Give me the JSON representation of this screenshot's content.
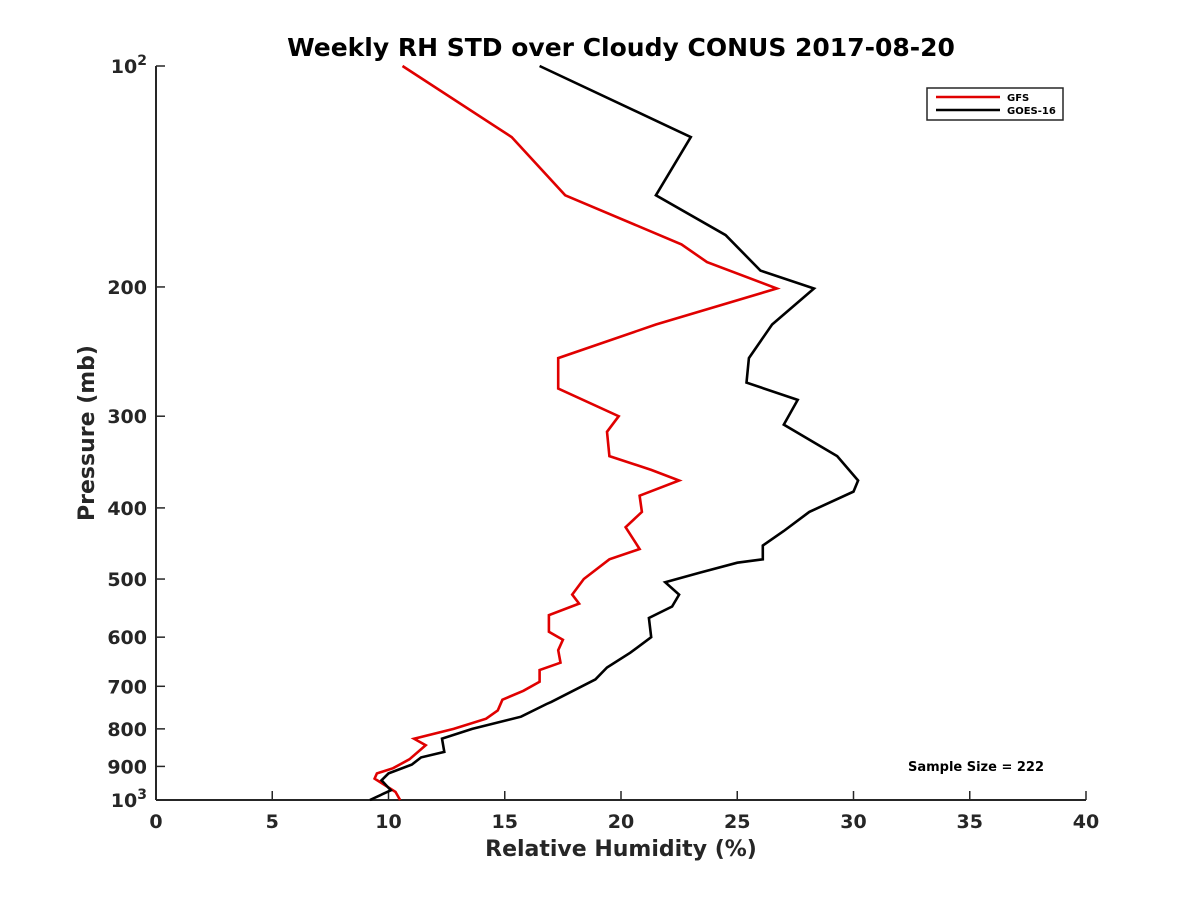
{
  "chart_data": {
    "type": "line",
    "title": "Weekly RH STD over Cloudy CONUS 2017-08-20",
    "xlabel": "Relative Humidity (%)",
    "ylabel": "Pressure (mb)",
    "xlim": [
      0,
      40
    ],
    "ylim": [
      100,
      1000
    ],
    "y_scale": "log",
    "y_reversed": true,
    "x_ticks": [
      "0",
      "5",
      "10",
      "15",
      "20",
      "25",
      "30",
      "35",
      "40"
    ],
    "y_ticks": [
      {
        "value": 100,
        "label": "10",
        "sup": "2"
      },
      {
        "value": 200,
        "label": "200",
        "sup": ""
      },
      {
        "value": 300,
        "label": "300",
        "sup": ""
      },
      {
        "value": 400,
        "label": "400",
        "sup": ""
      },
      {
        "value": 500,
        "label": "500",
        "sup": ""
      },
      {
        "value": 600,
        "label": "600",
        "sup": ""
      },
      {
        "value": 700,
        "label": "700",
        "sup": ""
      },
      {
        "value": 800,
        "label": "800",
        "sup": ""
      },
      {
        "value": 900,
        "label": "900",
        "sup": ""
      },
      {
        "value": 1000,
        "label": "10",
        "sup": "3"
      }
    ],
    "grid": false,
    "legend_position": "top-right",
    "annotation": "Sample Size = 222",
    "series": [
      {
        "name": "GFS",
        "color": "#e00000",
        "points": [
          [
            10.6,
            100
          ],
          [
            15.3,
            125
          ],
          [
            17.6,
            150
          ],
          [
            22.6,
            175
          ],
          [
            23.7,
            185
          ],
          [
            26.7,
            201
          ],
          [
            21.5,
            225
          ],
          [
            17.3,
            250
          ],
          [
            17.3,
            275
          ],
          [
            19.9,
            300
          ],
          [
            19.4,
            315
          ],
          [
            19.5,
            340
          ],
          [
            21.3,
            355
          ],
          [
            22.5,
            367
          ],
          [
            20.8,
            385
          ],
          [
            20.9,
            405
          ],
          [
            20.2,
            425
          ],
          [
            20.8,
            455
          ],
          [
            19.5,
            470
          ],
          [
            18.4,
            500
          ],
          [
            17.9,
            525
          ],
          [
            18.2,
            540
          ],
          [
            16.9,
            560
          ],
          [
            16.9,
            590
          ],
          [
            17.5,
            605
          ],
          [
            17.3,
            625
          ],
          [
            17.4,
            650
          ],
          [
            16.5,
            665
          ],
          [
            16.5,
            690
          ],
          [
            15.8,
            710
          ],
          [
            14.9,
            730
          ],
          [
            14.7,
            755
          ],
          [
            14.2,
            775
          ],
          [
            12.8,
            800
          ],
          [
            11.1,
            825
          ],
          [
            11.6,
            842
          ],
          [
            10.9,
            880
          ],
          [
            10.2,
            905
          ],
          [
            9.5,
            920
          ],
          [
            9.4,
            935
          ],
          [
            10.3,
            975
          ],
          [
            10.5,
            1000
          ]
        ]
      },
      {
        "name": "GOES-16",
        "color": "#000000",
        "points": [
          [
            16.5,
            100
          ],
          [
            23.0,
            125
          ],
          [
            21.5,
            150
          ],
          [
            24.5,
            170
          ],
          [
            26.0,
            190
          ],
          [
            28.3,
            201
          ],
          [
            26.5,
            225
          ],
          [
            25.5,
            250
          ],
          [
            25.4,
            270
          ],
          [
            27.6,
            285
          ],
          [
            27.0,
            308
          ],
          [
            29.3,
            340
          ],
          [
            30.2,
            367
          ],
          [
            30.0,
            380
          ],
          [
            28.1,
            405
          ],
          [
            27.0,
            430
          ],
          [
            26.1,
            450
          ],
          [
            26.1,
            470
          ],
          [
            25.0,
            475
          ],
          [
            23.4,
            490
          ],
          [
            21.9,
            505
          ],
          [
            22.5,
            525
          ],
          [
            22.2,
            545
          ],
          [
            21.2,
            565
          ],
          [
            21.3,
            600
          ],
          [
            20.4,
            630
          ],
          [
            19.4,
            660
          ],
          [
            18.9,
            685
          ],
          [
            17.0,
            735
          ],
          [
            16.8,
            740
          ],
          [
            15.7,
            770
          ],
          [
            13.6,
            800
          ],
          [
            12.3,
            825
          ],
          [
            12.4,
            860
          ],
          [
            11.4,
            875
          ],
          [
            11.0,
            895
          ],
          [
            10.0,
            920
          ],
          [
            9.7,
            940
          ],
          [
            10.1,
            970
          ],
          [
            9.2,
            1000
          ]
        ]
      }
    ]
  }
}
